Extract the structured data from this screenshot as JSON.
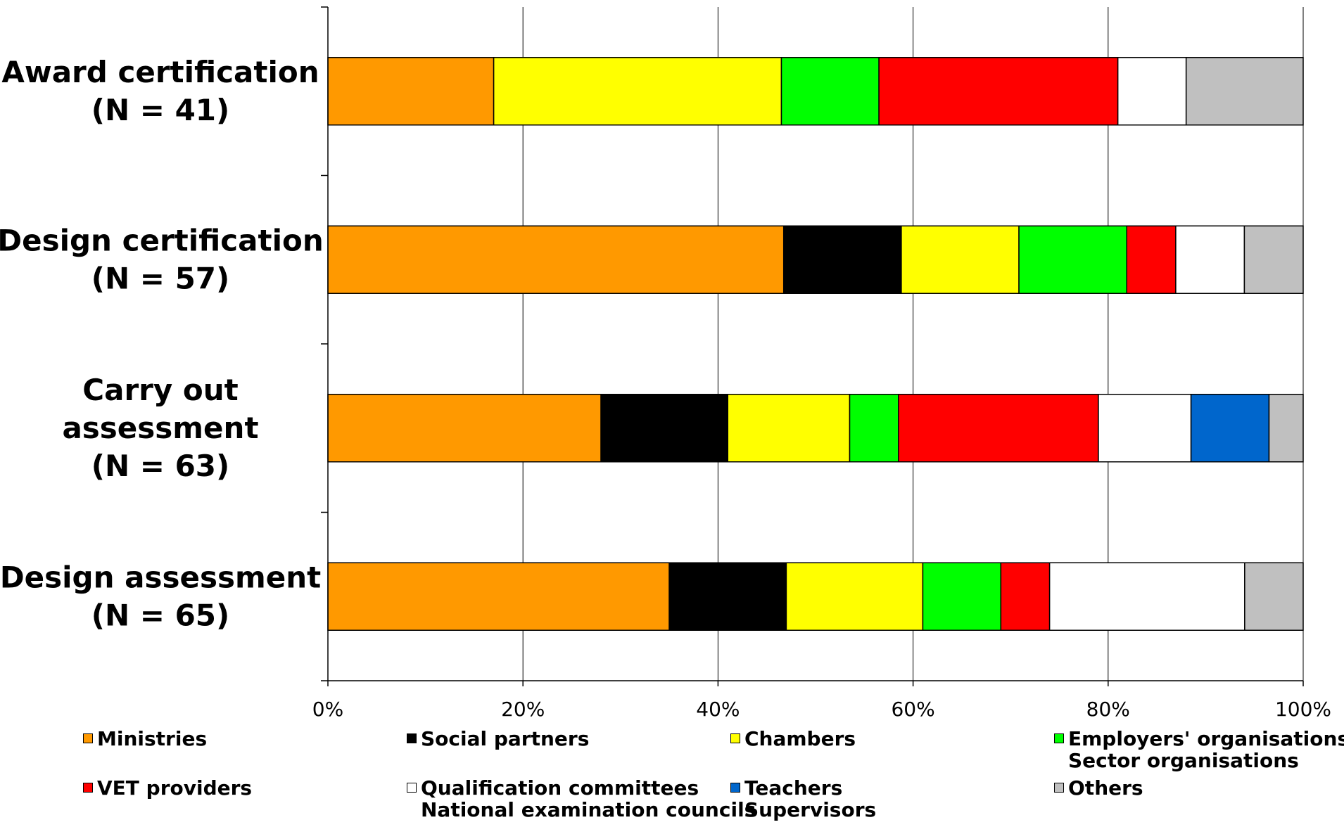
{
  "chart_data": {
    "type": "bar",
    "orientation": "horizontal",
    "stacked": "percent",
    "categories": [
      "Award certification\n(N = 41)",
      "Design certification\n(N = 57)",
      "Carry out\nassessment\n(N = 63)",
      "Design assessment\n(N = 65)"
    ],
    "xlim": [
      0,
      100
    ],
    "x_ticks": [
      "0%",
      "20%",
      "40%",
      "60%",
      "80%",
      "100%"
    ],
    "grid": "vertical",
    "legend_position": "bottom",
    "series": [
      {
        "name": "Ministries",
        "color": "#FF9900",
        "values": [
          17,
          46.5,
          28,
          35
        ]
      },
      {
        "name": "Social partners",
        "color": "#000000",
        "values": [
          0,
          12,
          13,
          12
        ]
      },
      {
        "name": "Chambers",
        "color": "#FFFF00",
        "values": [
          29.5,
          12,
          12.5,
          14
        ]
      },
      {
        "name": "Employers' organisations\nSector organisations",
        "color": "#00FF00",
        "values": [
          10,
          11,
          5,
          8
        ]
      },
      {
        "name": "VET providers",
        "color": "#FF0000",
        "values": [
          24.5,
          5,
          20.5,
          5
        ]
      },
      {
        "name": "Qualification committees\nNational examination councils",
        "color": "#FFFFFF",
        "values": [
          7,
          7,
          9.5,
          20
        ]
      },
      {
        "name": "Teachers\nSupervisors",
        "color": "#0066CC",
        "values": [
          0,
          0,
          8,
          0
        ]
      },
      {
        "name": "Others",
        "color": "#C0C0C0",
        "values": [
          12,
          6,
          3.5,
          6
        ]
      }
    ]
  }
}
